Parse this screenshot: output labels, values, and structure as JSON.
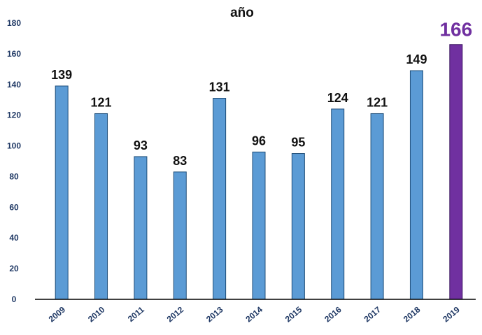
{
  "chart_data": {
    "type": "bar",
    "title_line1": "…",
    "title_line2": "año",
    "categories": [
      "2009",
      "2010",
      "2011",
      "2012",
      "2013",
      "2014",
      "2015",
      "2016",
      "2017",
      "2018",
      "2019"
    ],
    "values": [
      139,
      121,
      93,
      83,
      131,
      96,
      95,
      124,
      121,
      149,
      166
    ],
    "data_labels": [
      "139",
      "121",
      "93",
      "83",
      "131",
      "96",
      "95",
      "124",
      "121",
      "149",
      "166"
    ],
    "highlight_index": 10,
    "ylim": [
      0,
      180
    ],
    "yticks": [
      0,
      20,
      40,
      60,
      80,
      100,
      120,
      140,
      160,
      180
    ],
    "ytick_labels": [
      "0",
      "20",
      "40",
      "60",
      "80",
      "100",
      "120",
      "140",
      "160",
      "180"
    ],
    "grid": false,
    "colors": {
      "bar": "#5b9bd5",
      "bar_edge": "#1f4e79",
      "highlight": "#7030a0",
      "highlight_edge": "#3d1663",
      "highlight_label": "#7030a0",
      "axis": "#000000"
    }
  }
}
